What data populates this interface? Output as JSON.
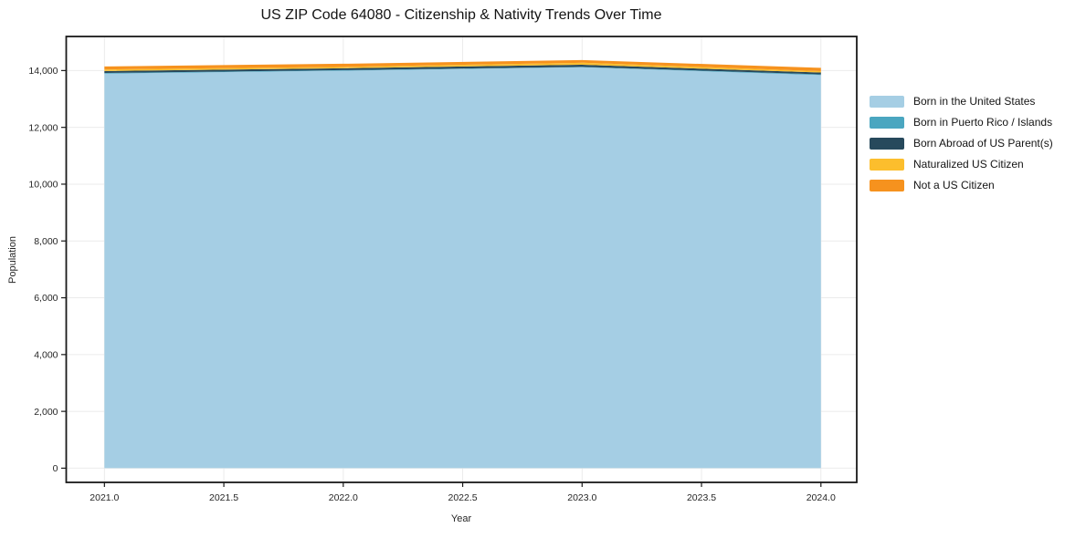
{
  "chart_data": {
    "type": "area",
    "stacked": true,
    "title": "US ZIP Code 64080 - Citizenship & Nativity Trends Over Time",
    "xlabel": "Year",
    "ylabel": "Population",
    "x": [
      2021,
      2022,
      2023,
      2024
    ],
    "series": [
      {
        "name": "Born in the United States",
        "color": "#A5CEE4",
        "values": [
          13890,
          13995,
          14115,
          13840
        ]
      },
      {
        "name": "Born in Puerto Rico / Islands",
        "color": "#4AA6C0",
        "values": [
          25,
          20,
          15,
          25
        ]
      },
      {
        "name": "Born Abroad of US Parent(s)",
        "color": "#27495C",
        "values": [
          70,
          65,
          75,
          65
        ]
      },
      {
        "name": "Naturalized US Citizen",
        "color": "#FCBE2D",
        "values": [
          55,
          50,
          70,
          50
        ]
      },
      {
        "name": "Not a US Citizen",
        "color": "#F6921E",
        "values": [
          105,
          110,
          95,
          115
        ]
      }
    ],
    "xticks": {
      "values": [
        2021.0,
        2021.5,
        2022.0,
        2022.5,
        2023.0,
        2023.5,
        2024.0
      ],
      "labels": [
        "2021.0",
        "2021.5",
        "2022.0",
        "2022.5",
        "2023.0",
        "2023.5",
        "2024.0"
      ]
    },
    "yticks": {
      "values": [
        0,
        2000,
        4000,
        6000,
        8000,
        10000,
        12000,
        14000
      ],
      "labels": [
        "0",
        "2,000",
        "4,000",
        "6,000",
        "8,000",
        "10,000",
        "12,000",
        "14,000"
      ]
    },
    "xlim": [
      2020.84,
      2024.15
    ],
    "ylim": [
      -500,
      15200
    ],
    "grid": true,
    "legend_position": "right-outside",
    "background": "#ffffff",
    "spine_color": "#1a1a1a",
    "grid_color": "#ebebeb",
    "tick_color": "#1a1a1a",
    "tick_label_color": "#262626"
  }
}
